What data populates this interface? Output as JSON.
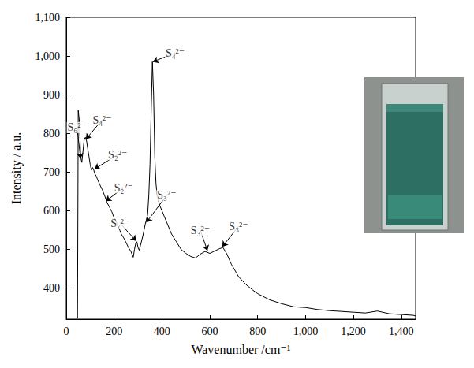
{
  "chart_data": {
    "type": "line",
    "x_label": "Wavenumber /cm⁻¹",
    "y_label": "Intensity / a.u.",
    "color": "#000000",
    "grid": false,
    "xlim": [
      0,
      1460
    ],
    "ylim": [
      320,
      1100
    ],
    "xticks": [
      0,
      200,
      400,
      600,
      800,
      1000,
      1200,
      1400
    ],
    "yticks": [
      400,
      500,
      600,
      700,
      800,
      900,
      1000,
      1100
    ],
    "x": [
      47,
      50,
      55,
      60,
      65,
      70,
      75,
      80,
      85,
      90,
      95,
      100,
      105,
      110,
      115,
      120,
      125,
      130,
      140,
      150,
      160,
      170,
      180,
      190,
      200,
      210,
      220,
      230,
      240,
      250,
      260,
      270,
      280,
      285,
      290,
      295,
      300,
      305,
      310,
      320,
      330,
      340,
      345,
      350,
      355,
      360,
      365,
      370,
      375,
      380,
      390,
      400,
      410,
      420,
      440,
      460,
      480,
      500,
      520,
      540,
      560,
      580,
      600,
      620,
      640,
      655,
      670,
      690,
      720,
      750,
      780,
      800,
      850,
      900,
      950,
      1000,
      1050,
      1100,
      1150,
      1200,
      1250,
      1300,
      1350,
      1400,
      1450,
      1460
    ],
    "values": [
      322,
      860,
      830,
      740,
      725,
      755,
      785,
      790,
      780,
      760,
      740,
      720,
      705,
      712,
      705,
      695,
      690,
      682,
      668,
      655,
      640,
      622,
      610,
      598,
      582,
      570,
      556,
      540,
      530,
      518,
      505,
      495,
      480,
      500,
      515,
      520,
      505,
      498,
      510,
      535,
      565,
      590,
      640,
      720,
      860,
      985,
      900,
      740,
      670,
      640,
      615,
      600,
      585,
      570,
      540,
      520,
      500,
      490,
      482,
      478,
      488,
      495,
      490,
      496,
      502,
      505,
      490,
      462,
      430,
      410,
      395,
      386,
      370,
      360,
      352,
      350,
      345,
      342,
      340,
      338,
      336,
      341,
      334,
      332,
      330,
      328
    ],
    "annotations": [
      {
        "text": "S₆²⁻",
        "x": 60,
        "y": 735,
        "text_x": 45,
        "text_y": 815
      },
      {
        "text": "S₄²⁻",
        "x": 82,
        "y": 785,
        "text_x": 150,
        "text_y": 835
      },
      {
        "text": "S₂²⁻",
        "x": 118,
        "y": 708,
        "text_x": 215,
        "text_y": 745
      },
      {
        "text": "S₂²⁻",
        "x": 165,
        "y": 625,
        "text_x": 240,
        "text_y": 660
      },
      {
        "text": "S₇²⁻",
        "x": 292,
        "y": 522,
        "text_x": 225,
        "text_y": 568
      },
      {
        "text": "S₃²⁻",
        "x": 335,
        "y": 570,
        "text_x": 420,
        "text_y": 640
      },
      {
        "text": "S₄²⁻",
        "x": 362,
        "y": 985,
        "text_x": 455,
        "text_y": 1008
      },
      {
        "text": "S₃²⁻",
        "x": 590,
        "y": 497,
        "text_x": 560,
        "text_y": 550
      },
      {
        "text": "S₃²⁻",
        "x": 652,
        "y": 507,
        "text_x": 720,
        "text_y": 560
      }
    ]
  }
}
